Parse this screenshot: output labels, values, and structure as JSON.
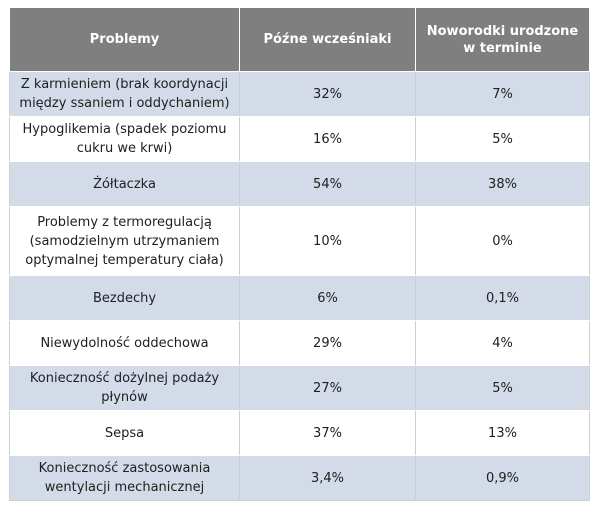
{
  "table": {
    "headers": [
      "Problemy",
      "Późne wcześniaki",
      "Noworodki urodzone w terminie"
    ],
    "rows": [
      {
        "problem": "Z karmieniem (brak koordynacji między ssaniem i oddychaniem)",
        "late_preterm": "32%",
        "term": "7%"
      },
      {
        "problem": "Hypoglikemia (spadek poziomu cukru we krwi)",
        "late_preterm": "16%",
        "term": "5%"
      },
      {
        "problem": "Żółtaczka",
        "late_preterm": "54%",
        "term": "38%"
      },
      {
        "problem": "Problemy z termoregulacją (samodzielnym utrzymaniem optymalnej temperatury ciała)",
        "late_preterm": "10%",
        "term": "0%"
      },
      {
        "problem": "Bezdechy",
        "late_preterm": "6%",
        "term": "0,1%"
      },
      {
        "problem": "Niewydolność oddechowa",
        "late_preterm": "29%",
        "term": "4%"
      },
      {
        "problem": "Konieczność dożylnej podaży płynów",
        "late_preterm": "27%",
        "term": "5%"
      },
      {
        "problem": "Sepsa",
        "late_preterm": "37%",
        "term": "13%"
      },
      {
        "problem": "Konieczność zastosowania wentylacji mechanicznej",
        "late_preterm": "3,4%",
        "term": "0,9%"
      }
    ]
  },
  "colors": {
    "header_bg": "#7f7f7f",
    "shaded_row": "#d4dbe8",
    "plain_row": "#ffffff"
  }
}
